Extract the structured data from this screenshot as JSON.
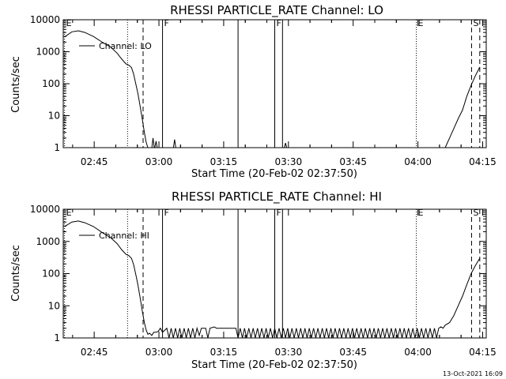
{
  "footer": {
    "timestamp": "13-Oct-2021 16:09"
  },
  "chart_data": [
    {
      "type": "line",
      "title": "RHESSI PARTICLE_RATE Channel: LO",
      "xlabel": "Start Time (20-Feb-02 02:37:50)",
      "ylabel": "Counts/sec",
      "y_scale": "log",
      "xlim": [
        0,
        98
      ],
      "ylim": [
        1,
        10000
      ],
      "x_ticks": [
        {
          "value": 7.17,
          "label": "02:45"
        },
        {
          "value": 22.17,
          "label": "03:00"
        },
        {
          "value": 37.17,
          "label": "03:15"
        },
        {
          "value": 52.17,
          "label": "03:30"
        },
        {
          "value": 67.17,
          "label": "03:45"
        },
        {
          "value": 82.17,
          "label": "04:00"
        },
        {
          "value": 97.17,
          "label": "04:15"
        }
      ],
      "y_ticks": [
        {
          "value": 1,
          "label": "1"
        },
        {
          "value": 10,
          "label": "10"
        },
        {
          "value": 100,
          "label": "100"
        },
        {
          "value": 1000,
          "label": "1000"
        },
        {
          "value": 10000,
          "label": "10000"
        }
      ],
      "legend": {
        "label": "Channel: LO",
        "position": "top-left"
      },
      "series": [
        {
          "values": [
            [
              0.3,
              2900
            ],
            [
              2,
              4200
            ],
            [
              3.5,
              4500
            ],
            [
              5,
              4000
            ],
            [
              7,
              3000
            ],
            [
              9,
              2000
            ],
            [
              11,
              1400
            ],
            [
              12.5,
              900
            ],
            [
              13.5,
              600
            ],
            [
              14.5,
              420
            ],
            [
              15.2,
              380
            ],
            [
              15.8,
              320
            ],
            [
              16.3,
              200
            ],
            [
              16.8,
              100
            ],
            [
              17.3,
              50
            ],
            [
              17.8,
              20
            ],
            [
              18.3,
              8
            ],
            [
              18.8,
              3
            ],
            [
              19.2,
              1.5
            ],
            [
              19.6,
              1
            ]
          ]
        },
        {
          "values": [
            [
              88.5,
              1
            ],
            [
              89.5,
              2
            ],
            [
              90.5,
              4
            ],
            [
              91.5,
              8
            ],
            [
              92.5,
              15
            ],
            [
              93.5,
              40
            ],
            [
              94.5,
              90
            ],
            [
              95.5,
              180
            ],
            [
              96.5,
              330
            ]
          ]
        }
      ],
      "spikes": [
        {
          "x": 20.8,
          "y": 2
        },
        {
          "x": 21.5,
          "y": 1.6
        },
        {
          "x": 25.8,
          "y": 1.8
        },
        {
          "x": 51.5,
          "y": 1.4
        }
      ],
      "markers": [
        {
          "x": 0.3,
          "style": "dotted",
          "label": "E"
        },
        {
          "x": 14.9,
          "style": "dotted",
          "label": ""
        },
        {
          "x": 18.5,
          "style": "dashed",
          "label": ""
        },
        {
          "x": 23.0,
          "style": "solid",
          "label": "F"
        },
        {
          "x": 40.5,
          "style": "solid",
          "label": ""
        },
        {
          "x": 49.0,
          "style": "solid",
          "label": "F"
        },
        {
          "x": 50.8,
          "style": "solid",
          "label": ""
        },
        {
          "x": 81.8,
          "style": "dotted",
          "label": "E"
        },
        {
          "x": 94.6,
          "style": "dashed",
          "label": "S"
        },
        {
          "x": 96.5,
          "style": "dashed",
          "label": ""
        }
      ]
    },
    {
      "type": "line",
      "title": "RHESSI PARTICLE_RATE Channel: HI",
      "xlabel": "Start Time (20-Feb-02 02:37:50)",
      "ylabel": "Counts/sec",
      "y_scale": "log",
      "xlim": [
        0,
        98
      ],
      "ylim": [
        1,
        10000
      ],
      "x_ticks": [
        {
          "value": 7.17,
          "label": "02:45"
        },
        {
          "value": 22.17,
          "label": "03:00"
        },
        {
          "value": 37.17,
          "label": "03:15"
        },
        {
          "value": 52.17,
          "label": "03:30"
        },
        {
          "value": 67.17,
          "label": "03:45"
        },
        {
          "value": 82.17,
          "label": "04:00"
        },
        {
          "value": 97.17,
          "label": "04:15"
        }
      ],
      "y_ticks": [
        {
          "value": 1,
          "label": "1"
        },
        {
          "value": 10,
          "label": "10"
        },
        {
          "value": 100,
          "label": "100"
        },
        {
          "value": 1000,
          "label": "1000"
        },
        {
          "value": 10000,
          "label": "10000"
        }
      ],
      "legend": {
        "label": "Channel: HI",
        "position": "top-left"
      },
      "series": [
        {
          "values": [
            [
              0.3,
              2900
            ],
            [
              2,
              4000
            ],
            [
              3.5,
              4300
            ],
            [
              5,
              3800
            ],
            [
              7,
              2900
            ],
            [
              9,
              1900
            ],
            [
              11,
              1300
            ],
            [
              12.5,
              850
            ],
            [
              13.5,
              560
            ],
            [
              14.5,
              400
            ],
            [
              15.2,
              360
            ],
            [
              15.8,
              300
            ],
            [
              16.3,
              190
            ],
            [
              16.8,
              95
            ],
            [
              17.3,
              45
            ],
            [
              17.8,
              18
            ],
            [
              18.3,
              7
            ],
            [
              18.8,
              3
            ],
            [
              19.2,
              1.8
            ],
            [
              19.6,
              1.3
            ],
            [
              20,
              1.4
            ],
            [
              20.5,
              1.2
            ],
            [
              21,
              1.5
            ],
            [
              21.5,
              1.5
            ],
            [
              22,
              1.6
            ],
            [
              22.5,
              2
            ],
            [
              23,
              1.5
            ],
            [
              24,
              2
            ],
            [
              24.5,
              1
            ],
            [
              25,
              2
            ],
            [
              25.5,
              1
            ],
            [
              26,
              2
            ],
            [
              26.5,
              1
            ],
            [
              27,
              2
            ],
            [
              27.5,
              1
            ],
            [
              28,
              2
            ],
            [
              28.5,
              1
            ],
            [
              29,
              2
            ],
            [
              29.5,
              1
            ],
            [
              30,
              2
            ],
            [
              30.5,
              1
            ],
            [
              31,
              2
            ],
            [
              31.5,
              1.2
            ],
            [
              32,
              2
            ],
            [
              33,
              2
            ],
            [
              33.5,
              1
            ],
            [
              34,
              2
            ],
            [
              35,
              2.2
            ],
            [
              35.5,
              2
            ],
            [
              36,
              2
            ],
            [
              37,
              2
            ],
            [
              38,
              2
            ],
            [
              39,
              2
            ],
            [
              40,
              2
            ],
            [
              40.5,
              1
            ],
            [
              41,
              2
            ],
            [
              41.5,
              1
            ],
            [
              42,
              2
            ],
            [
              42.5,
              1
            ],
            [
              43,
              2
            ],
            [
              43.5,
              1
            ],
            [
              44,
              2
            ],
            [
              44.5,
              1
            ],
            [
              45,
              2
            ],
            [
              45.5,
              1
            ],
            [
              46,
              2
            ],
            [
              46.5,
              1
            ],
            [
              47,
              2
            ],
            [
              47.5,
              1
            ],
            [
              48,
              2
            ],
            [
              48.5,
              1
            ],
            [
              49,
              2
            ],
            [
              49.5,
              1
            ],
            [
              50,
              2
            ],
            [
              50.5,
              1
            ],
            [
              51,
              2
            ],
            [
              51.5,
              1
            ],
            [
              52,
              2
            ],
            [
              52.5,
              1
            ],
            [
              53,
              2
            ],
            [
              53.5,
              1
            ],
            [
              54,
              2
            ],
            [
              54.5,
              1
            ],
            [
              55,
              2
            ],
            [
              55.5,
              1
            ],
            [
              56,
              2
            ],
            [
              56.5,
              1
            ],
            [
              57,
              2
            ],
            [
              57.5,
              1
            ],
            [
              58,
              2
            ],
            [
              58.5,
              1
            ],
            [
              59,
              2
            ],
            [
              59.5,
              1
            ],
            [
              60,
              2
            ],
            [
              60.5,
              1
            ],
            [
              61,
              2
            ],
            [
              61.5,
              1
            ],
            [
              62,
              2
            ],
            [
              62.5,
              1
            ],
            [
              63,
              2
            ],
            [
              63.5,
              1
            ],
            [
              64,
              2
            ],
            [
              64.5,
              1
            ],
            [
              65,
              2
            ],
            [
              65.5,
              1
            ],
            [
              66,
              2
            ],
            [
              66.5,
              1
            ],
            [
              67,
              2
            ],
            [
              67.5,
              1
            ],
            [
              68,
              2
            ],
            [
              68.5,
              1
            ],
            [
              69,
              2
            ],
            [
              69.5,
              1
            ],
            [
              70,
              2
            ],
            [
              70.5,
              1
            ],
            [
              71,
              2
            ],
            [
              71.5,
              1
            ],
            [
              72,
              2
            ],
            [
              72.5,
              1
            ],
            [
              73,
              2
            ],
            [
              73.5,
              1
            ],
            [
              74,
              2
            ],
            [
              74.5,
              1
            ],
            [
              75,
              2
            ],
            [
              75.5,
              1
            ],
            [
              76,
              2
            ],
            [
              76.5,
              1
            ],
            [
              77,
              2
            ],
            [
              77.5,
              1
            ],
            [
              78,
              2
            ],
            [
              78.5,
              1
            ],
            [
              79,
              2
            ],
            [
              79.5,
              1
            ],
            [
              80,
              2
            ],
            [
              80.5,
              1
            ],
            [
              81,
              2
            ],
            [
              81.5,
              1
            ],
            [
              82,
              2
            ],
            [
              82.5,
              1
            ],
            [
              83,
              2
            ],
            [
              83.5,
              1
            ],
            [
              84,
              2
            ],
            [
              84.5,
              1
            ],
            [
              85,
              2
            ],
            [
              85.5,
              1
            ],
            [
              86,
              2
            ],
            [
              86.5,
              1
            ],
            [
              87,
              2
            ],
            [
              87.5,
              2.2
            ],
            [
              88,
              2
            ],
            [
              88.5,
              2.5
            ],
            [
              89.5,
              3
            ],
            [
              90.5,
              5
            ],
            [
              91.5,
              10
            ],
            [
              92.5,
              20
            ],
            [
              93.5,
              45
            ],
            [
              94.5,
              100
            ],
            [
              95.5,
              180
            ],
            [
              96.5,
              300
            ]
          ]
        }
      ],
      "spikes": [],
      "markers": [
        {
          "x": 0.3,
          "style": "dotted",
          "label": "E"
        },
        {
          "x": 14.9,
          "style": "dotted",
          "label": ""
        },
        {
          "x": 18.5,
          "style": "dashed",
          "label": ""
        },
        {
          "x": 23.0,
          "style": "solid",
          "label": "F"
        },
        {
          "x": 40.5,
          "style": "solid",
          "label": ""
        },
        {
          "x": 49.0,
          "style": "solid",
          "label": "F"
        },
        {
          "x": 50.8,
          "style": "solid",
          "label": ""
        },
        {
          "x": 81.8,
          "style": "dotted",
          "label": "E"
        },
        {
          "x": 94.6,
          "style": "dashed",
          "label": "S"
        },
        {
          "x": 96.5,
          "style": "dashed",
          "label": ""
        }
      ]
    }
  ]
}
